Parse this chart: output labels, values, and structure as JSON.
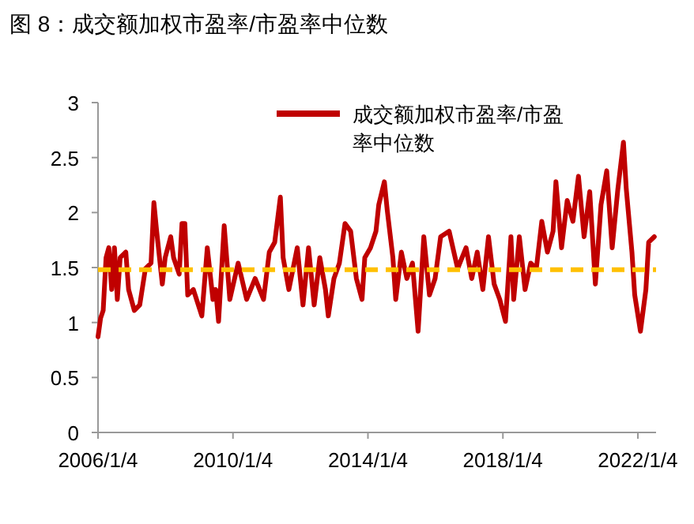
{
  "chart_data": {
    "type": "line",
    "title": "图 8：成交额加权市盈率/市盈率中位数",
    "x": [
      "2006-01-04",
      "2006-02",
      "2006-03",
      "2006-04",
      "2006-05",
      "2006-06",
      "2006-07",
      "2006-08",
      "2006-09",
      "2006-11",
      "2006-12",
      "2007-02",
      "2007-04",
      "2007-06",
      "2007-08",
      "2007-09",
      "2007-10",
      "2007-12",
      "2008-01",
      "2008-03",
      "2008-04",
      "2008-06",
      "2008-07",
      "2008-08",
      "2008-09",
      "2008-11",
      "2009-02",
      "2009-04",
      "2009-06",
      "2009-07",
      "2009-08",
      "2009-10",
      "2009-12",
      "2010-03",
      "2010-06",
      "2010-09",
      "2010-12",
      "2011-02",
      "2011-04",
      "2011-06",
      "2011-07",
      "2011-09",
      "2011-12",
      "2012-02",
      "2012-04",
      "2012-06",
      "2012-08",
      "2012-10",
      "2012-11",
      "2013-01",
      "2013-03",
      "2013-05",
      "2013-07",
      "2013-09",
      "2013-11",
      "2013-12",
      "2014-02",
      "2014-04",
      "2014-05",
      "2014-07",
      "2014-08",
      "2014-10",
      "2014-11",
      "2015-01",
      "2015-03",
      "2015-05",
      "2015-07",
      "2015-09",
      "2015-11",
      "2016-01",
      "2016-03",
      "2016-06",
      "2016-09",
      "2016-12",
      "2017-02",
      "2017-04",
      "2017-06",
      "2017-08",
      "2017-10",
      "2017-12",
      "2018-02",
      "2018-04",
      "2018-05",
      "2018-07",
      "2018-09",
      "2018-11",
      "2019-01",
      "2019-03",
      "2019-05",
      "2019-07",
      "2019-08",
      "2019-10",
      "2019-12",
      "2020-02",
      "2020-04",
      "2020-06",
      "2020-08",
      "2020-10",
      "2020-12",
      "2021-02",
      "2021-04",
      "2021-06",
      "2021-08",
      "2021-09",
      "2021-11",
      "2021-12",
      "2022-02",
      "2022-04",
      "2022-05",
      "2022-07"
    ],
    "series": [
      {
        "name": "成交额加权市盈率/市盈率中位数",
        "color": "#c00000",
        "values": [
          0.87,
          1.04,
          1.11,
          1.59,
          1.68,
          1.3,
          1.68,
          1.21,
          1.59,
          1.64,
          1.3,
          1.11,
          1.16,
          1.49,
          1.54,
          2.09,
          1.83,
          1.35,
          1.59,
          1.78,
          1.59,
          1.44,
          1.9,
          1.9,
          1.25,
          1.3,
          1.06,
          1.68,
          1.21,
          1.3,
          1.01,
          1.88,
          1.21,
          1.54,
          1.21,
          1.4,
          1.21,
          1.64,
          1.73,
          2.14,
          1.59,
          1.3,
          1.68,
          1.16,
          1.68,
          1.16,
          1.59,
          1.3,
          1.06,
          1.4,
          1.54,
          1.9,
          1.83,
          1.4,
          1.21,
          1.59,
          1.68,
          1.83,
          2.07,
          2.28,
          2.02,
          1.59,
          1.21,
          1.64,
          1.4,
          1.54,
          0.92,
          1.78,
          1.25,
          1.4,
          1.78,
          1.83,
          1.49,
          1.68,
          1.4,
          1.64,
          1.3,
          1.78,
          1.35,
          1.21,
          1.01,
          1.78,
          1.21,
          1.78,
          1.3,
          1.54,
          1.49,
          1.92,
          1.64,
          1.83,
          2.28,
          1.68,
          2.11,
          1.92,
          2.33,
          1.78,
          2.19,
          1.35,
          2.07,
          2.38,
          1.68,
          2.21,
          2.64,
          2.21,
          1.64,
          1.25,
          0.92,
          1.3,
          1.73,
          1.78
        ]
      }
    ],
    "xlim": [
      "2006-01-04",
      "2022-07-20"
    ],
    "xticks": [
      {
        "value": "2006-01-04",
        "label": "2006/1/4"
      },
      {
        "value": "2010-01-04",
        "label": "2010/1/4"
      },
      {
        "value": "2014-01-04",
        "label": "2014/1/4"
      },
      {
        "value": "2018-01-04",
        "label": "2018/1/4"
      },
      {
        "value": "2022-01-04",
        "label": "2022/1/4"
      }
    ],
    "ylim": [
      0,
      3
    ],
    "yticks": [
      0,
      0.5,
      1,
      1.5,
      2,
      2.5,
      3
    ],
    "ref_lines": [
      {
        "axis": "y",
        "value": 1.48,
        "color": "#ffc000",
        "line_style": "dashed"
      }
    ],
    "legend": "top",
    "grid": false,
    "marker": "none",
    "line_style": "solid"
  }
}
